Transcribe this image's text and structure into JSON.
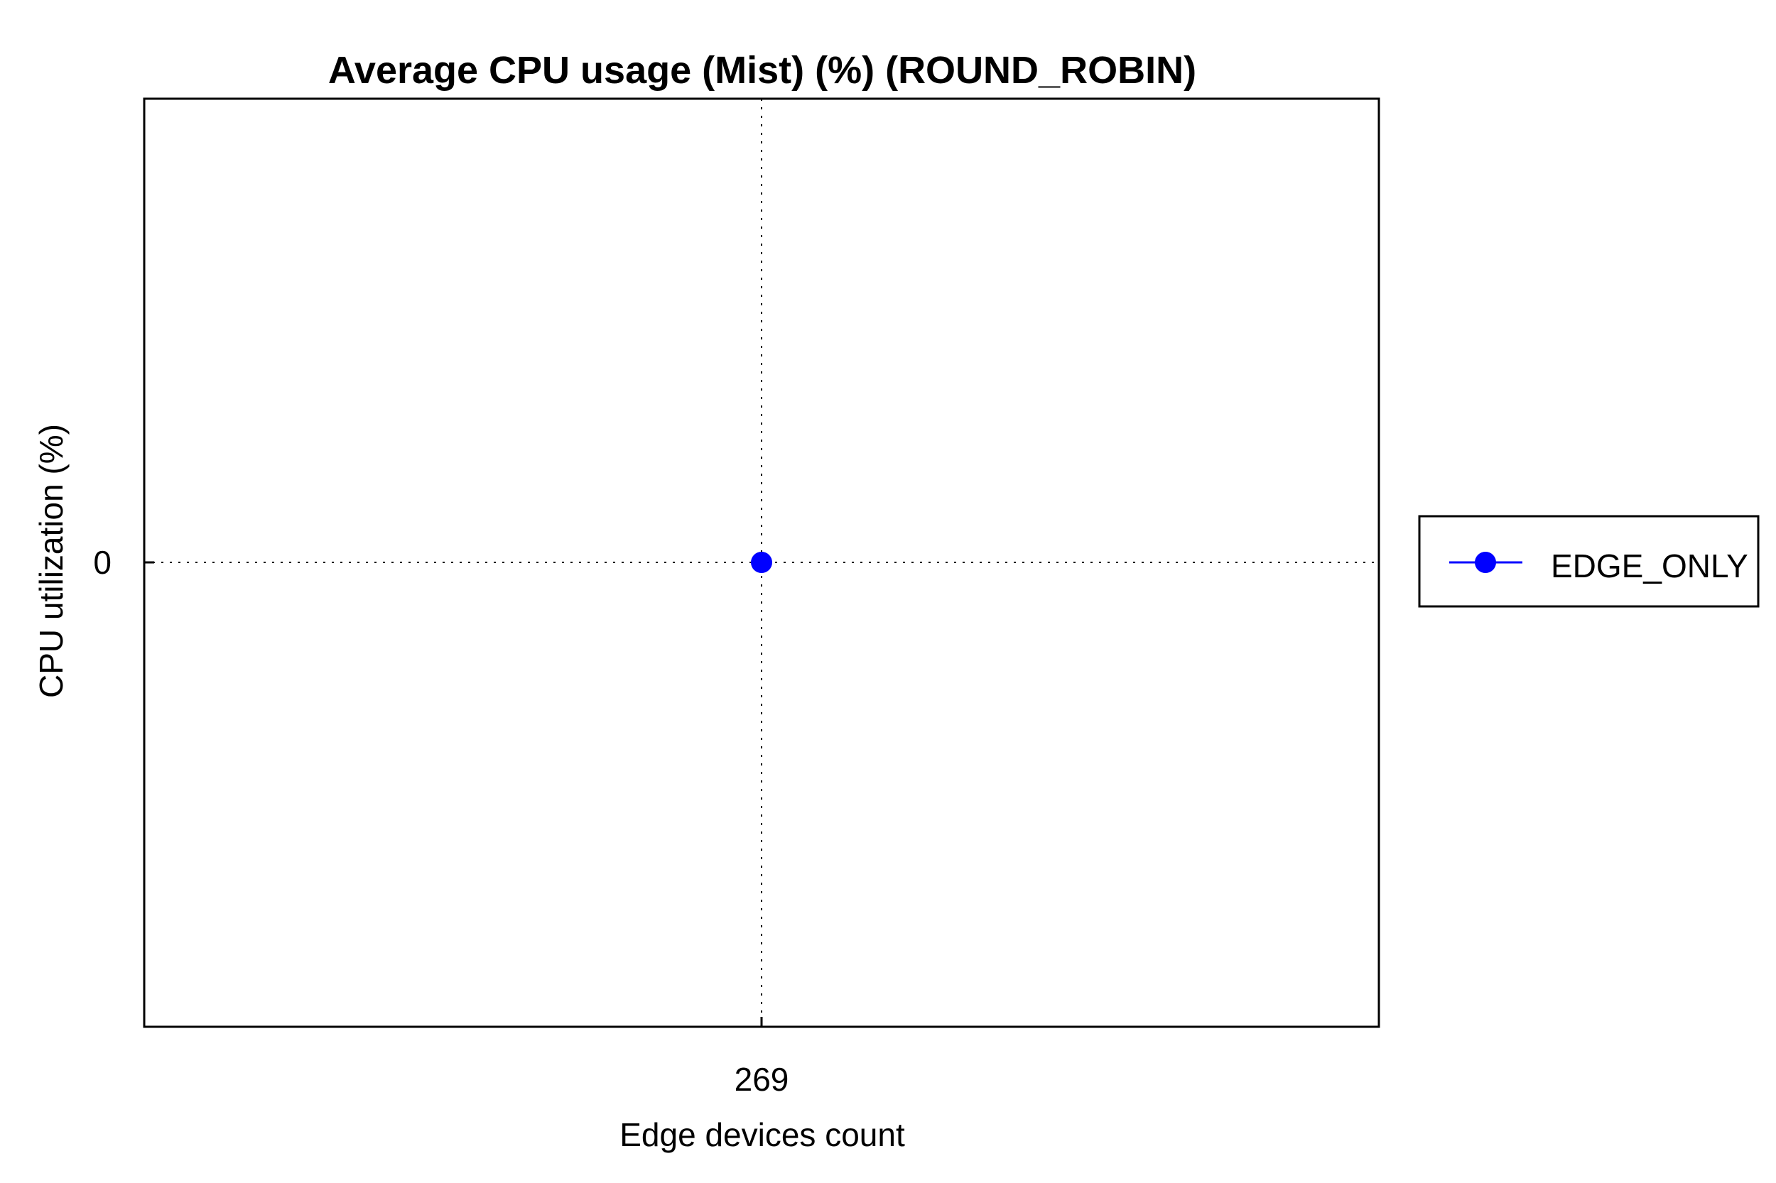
{
  "chart_data": {
    "type": "line",
    "title": "Average CPU usage (Mist) (%) (ROUND_ROBIN)",
    "xlabel": "Edge devices count",
    "ylabel": "CPU utilization (%)",
    "x_ticks": [
      "269"
    ],
    "y_ticks": [
      "0"
    ],
    "x": [
      269
    ],
    "series": [
      {
        "name": "EDGE_ONLY",
        "values": [
          0
        ],
        "color": "#0000ff",
        "marker": "circle"
      }
    ],
    "grid": true,
    "legend_position": "outside-right"
  }
}
